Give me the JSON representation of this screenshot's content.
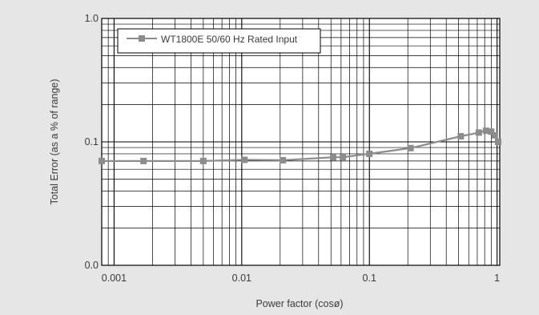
{
  "chart_data": {
    "type": "line",
    "xlabel": "Power factor (cosø)",
    "ylabel": "Total Error (as a % of range)",
    "x_scale": "log",
    "y_scale": "log",
    "xlim": [
      0.0008,
      1.05
    ],
    "ylim": [
      0.01,
      1.0
    ],
    "x_ticks": [
      {
        "value": 0.001,
        "label": "0.001"
      },
      {
        "value": 0.01,
        "label": "0.01"
      },
      {
        "value": 0.1,
        "label": "0.1"
      },
      {
        "value": 1,
        "label": "1"
      }
    ],
    "y_ticks": [
      {
        "value": 0.01,
        "label": "0.0"
      },
      {
        "value": 0.1,
        "label": "0.1"
      },
      {
        "value": 1.0,
        "label": "1.0"
      }
    ],
    "grid": true,
    "legend_position": "top-left",
    "series": [
      {
        "name": "WT1800E 50/60 Hz Rated Input",
        "color": "#8c8c8c",
        "marker": "square",
        "x": [
          0.0008,
          0.0017,
          0.005,
          0.0105,
          0.021,
          0.052,
          0.062,
          0.1,
          0.21,
          0.52,
          0.72,
          0.82,
          0.9,
          0.96,
          1.02
        ],
        "y": [
          0.07,
          0.07,
          0.07,
          0.0715,
          0.071,
          0.075,
          0.0752,
          0.08,
          0.089,
          0.111,
          0.119,
          0.123,
          0.121,
          0.113,
          0.1
        ]
      }
    ]
  }
}
